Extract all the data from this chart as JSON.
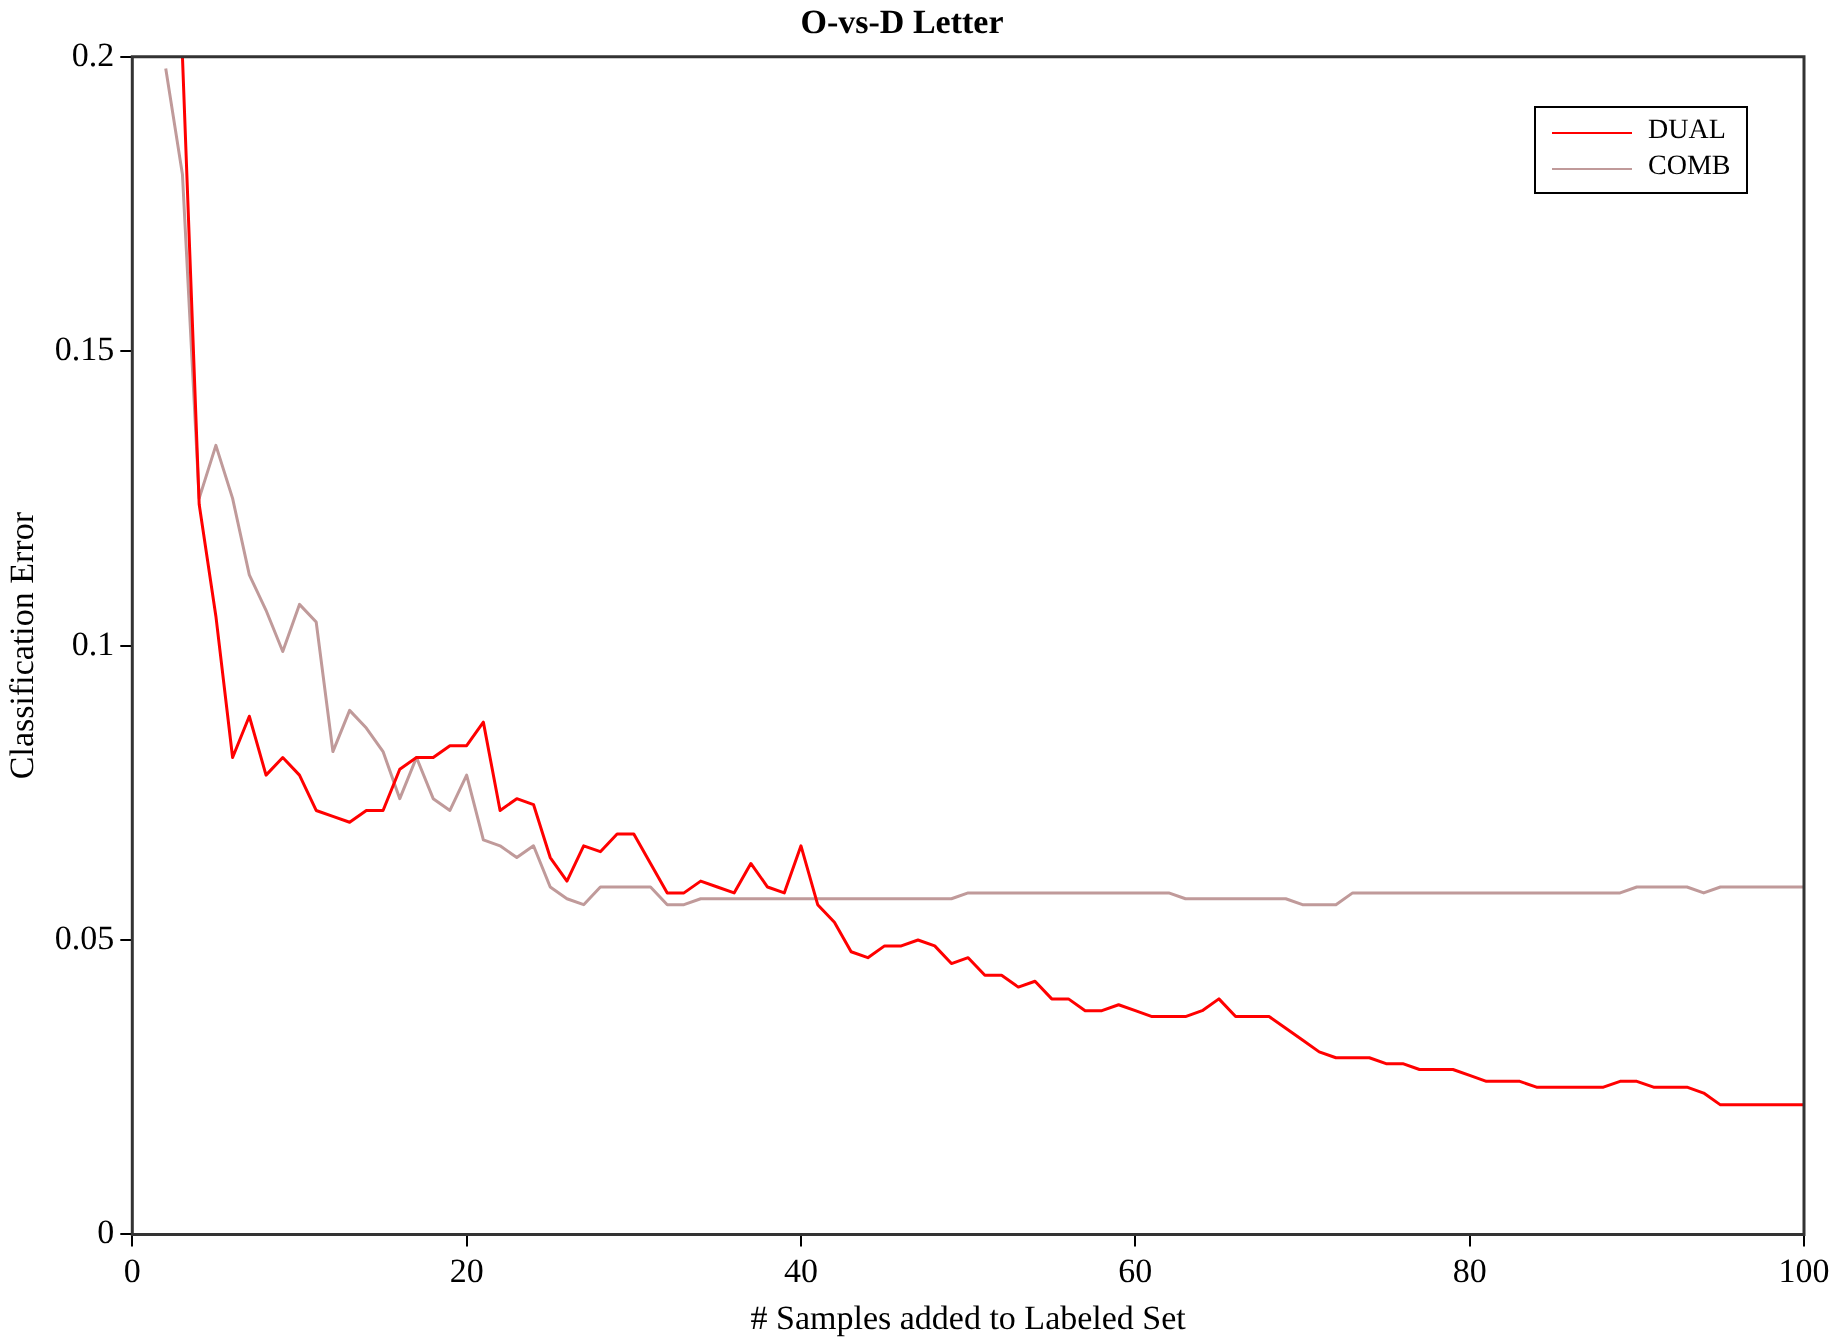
{
  "chart_data": {
    "type": "line",
    "title": "O-vs-D Letter",
    "xlabel": "# Samples added to Labeled Set",
    "ylabel": "Classification Error",
    "x": [
      2,
      3,
      4,
      5,
      6,
      7,
      8,
      9,
      10,
      11,
      12,
      13,
      14,
      15,
      16,
      17,
      18,
      19,
      20,
      21,
      22,
      23,
      24,
      25,
      26,
      27,
      28,
      29,
      30,
      31,
      32,
      33,
      34,
      35,
      36,
      37,
      38,
      39,
      40,
      41,
      42,
      43,
      44,
      45,
      46,
      47,
      48,
      49,
      50,
      51,
      52,
      53,
      54,
      55,
      56,
      57,
      58,
      59,
      60,
      61,
      62,
      63,
      64,
      65,
      66,
      67,
      68,
      69,
      70,
      71,
      72,
      73,
      74,
      75,
      76,
      77,
      78,
      79,
      80,
      81,
      82,
      83,
      84,
      85,
      86,
      87,
      88,
      89,
      90,
      91,
      92,
      93,
      94,
      95,
      96,
      97,
      98,
      99,
      100
    ],
    "series": [
      {
        "name": "DUAL",
        "color": "#ff0000",
        "values": [
          null,
          0.2,
          0.124,
          0.105,
          0.081,
          0.088,
          0.078,
          0.081,
          0.078,
          0.072,
          0.071,
          0.07,
          0.072,
          0.072,
          0.079,
          0.081,
          0.081,
          0.083,
          0.083,
          0.087,
          0.072,
          0.074,
          0.073,
          0.064,
          0.06,
          0.066,
          0.065,
          0.068,
          0.068,
          0.063,
          0.058,
          0.058,
          0.06,
          0.059,
          0.058,
          0.063,
          0.059,
          0.058,
          0.066,
          0.056,
          0.053,
          0.048,
          0.047,
          0.049,
          0.049,
          0.05,
          0.049,
          0.046,
          0.047,
          0.044,
          0.044,
          0.042,
          0.043,
          0.04,
          0.04,
          0.038,
          0.038,
          0.039,
          0.038,
          0.037,
          0.037,
          0.037,
          0.038,
          0.04,
          0.037,
          0.037,
          0.037,
          0.035,
          0.033,
          0.031,
          0.03,
          0.03,
          0.03,
          0.029,
          0.029,
          0.028,
          0.028,
          0.028,
          0.027,
          0.026,
          0.026,
          0.026,
          0.025,
          0.025,
          0.025,
          0.025,
          0.025,
          0.026,
          0.026,
          0.025,
          0.025,
          0.025,
          0.024,
          0.022,
          0.022,
          0.022,
          0.022,
          0.022,
          0.022
        ]
      },
      {
        "name": "COMB",
        "color": "#c09a9a",
        "values": [
          0.198,
          0.18,
          0.125,
          0.134,
          0.125,
          0.112,
          0.106,
          0.099,
          0.107,
          0.104,
          0.082,
          0.089,
          0.086,
          0.082,
          0.074,
          0.081,
          0.074,
          0.072,
          0.078,
          0.067,
          0.066,
          0.064,
          0.066,
          0.059,
          0.057,
          0.056,
          0.059,
          0.059,
          0.059,
          0.059,
          0.056,
          0.056,
          0.057,
          0.057,
          0.057,
          0.057,
          0.057,
          0.057,
          0.057,
          0.057,
          0.057,
          0.057,
          0.057,
          0.057,
          0.057,
          0.057,
          0.057,
          0.057,
          0.058,
          0.058,
          0.058,
          0.058,
          0.058,
          0.058,
          0.058,
          0.058,
          0.058,
          0.058,
          0.058,
          0.058,
          0.058,
          0.057,
          0.057,
          0.057,
          0.057,
          0.057,
          0.057,
          0.057,
          0.056,
          0.056,
          0.056,
          0.058,
          0.058,
          0.058,
          0.058,
          0.058,
          0.058,
          0.058,
          0.058,
          0.058,
          0.058,
          0.058,
          0.058,
          0.058,
          0.058,
          0.058,
          0.058,
          0.058,
          0.059,
          0.059,
          0.059,
          0.059,
          0.058,
          0.059,
          0.059,
          0.059,
          0.059,
          0.059,
          0.059
        ]
      }
    ],
    "xlim": [
      0,
      100
    ],
    "xticks": [
      0,
      20,
      40,
      60,
      80,
      100
    ],
    "ylim": [
      0,
      0.2
    ],
    "yticks": [
      0,
      0.05,
      0.1,
      0.15,
      0.2
    ],
    "grid": false,
    "legend": "top right",
    "marker": "none",
    "line_style": "solid"
  }
}
